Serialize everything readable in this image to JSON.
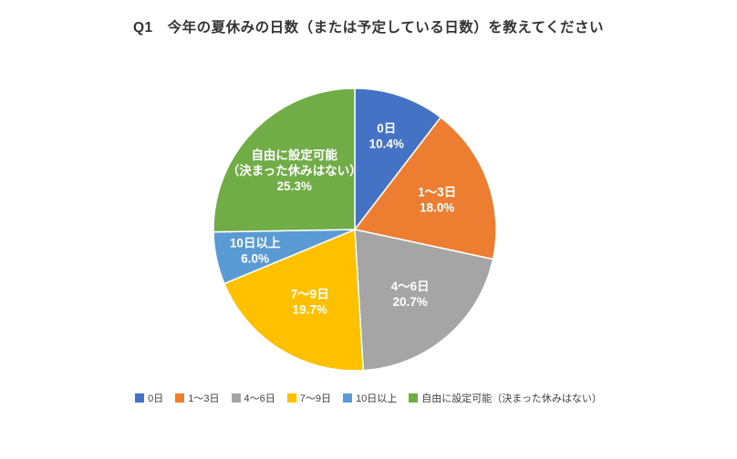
{
  "title": "Q1　今年の夏休みの日数（または予定している日数）を教えてください",
  "chart_data": {
    "type": "pie",
    "title": "Q1　今年の夏休みの日数（または予定している日数）を教えてください",
    "start_angle_deg": 0,
    "direction": "clockwise",
    "legend_position": "bottom",
    "label_text_color": "#ffffff",
    "slices": [
      {
        "label": "0日",
        "value": 10.4,
        "percent_text": "10.4%",
        "color": "#4472C4",
        "label_lines": [
          "0日",
          "10.4%"
        ],
        "label_r": 0.7
      },
      {
        "label": "1～3日",
        "value": 18.0,
        "percent_text": "18.0%",
        "color": "#ED7D31",
        "label_lines": [
          "1～3日",
          "18.0%"
        ],
        "label_r": 0.62
      },
      {
        "label": "4～6日",
        "value": 20.7,
        "percent_text": "20.7%",
        "color": "#A5A5A5",
        "label_lines": [
          "4～6日",
          "20.7%"
        ],
        "label_r": 0.6
      },
      {
        "label": "7～9日",
        "value": 19.7,
        "percent_text": "19.7%",
        "color": "#FFC000",
        "label_lines": [
          "7～9日",
          "19.7%"
        ],
        "label_r": 0.6
      },
      {
        "label": "10日以上",
        "value": 6.0,
        "percent_text": "6.0%",
        "color": "#5B9BD5",
        "label_lines": [
          "10日以上",
          "6.0%"
        ],
        "label_r": 0.72
      },
      {
        "label": "自由に設定可能（決まった休みはない）",
        "value": 25.3,
        "percent_text": "25.3%",
        "color": "#70AD47",
        "label_lines": [
          "自由に設定可能",
          "（決まった休みはない）",
          "25.3%"
        ],
        "label_r": 0.6
      }
    ]
  }
}
